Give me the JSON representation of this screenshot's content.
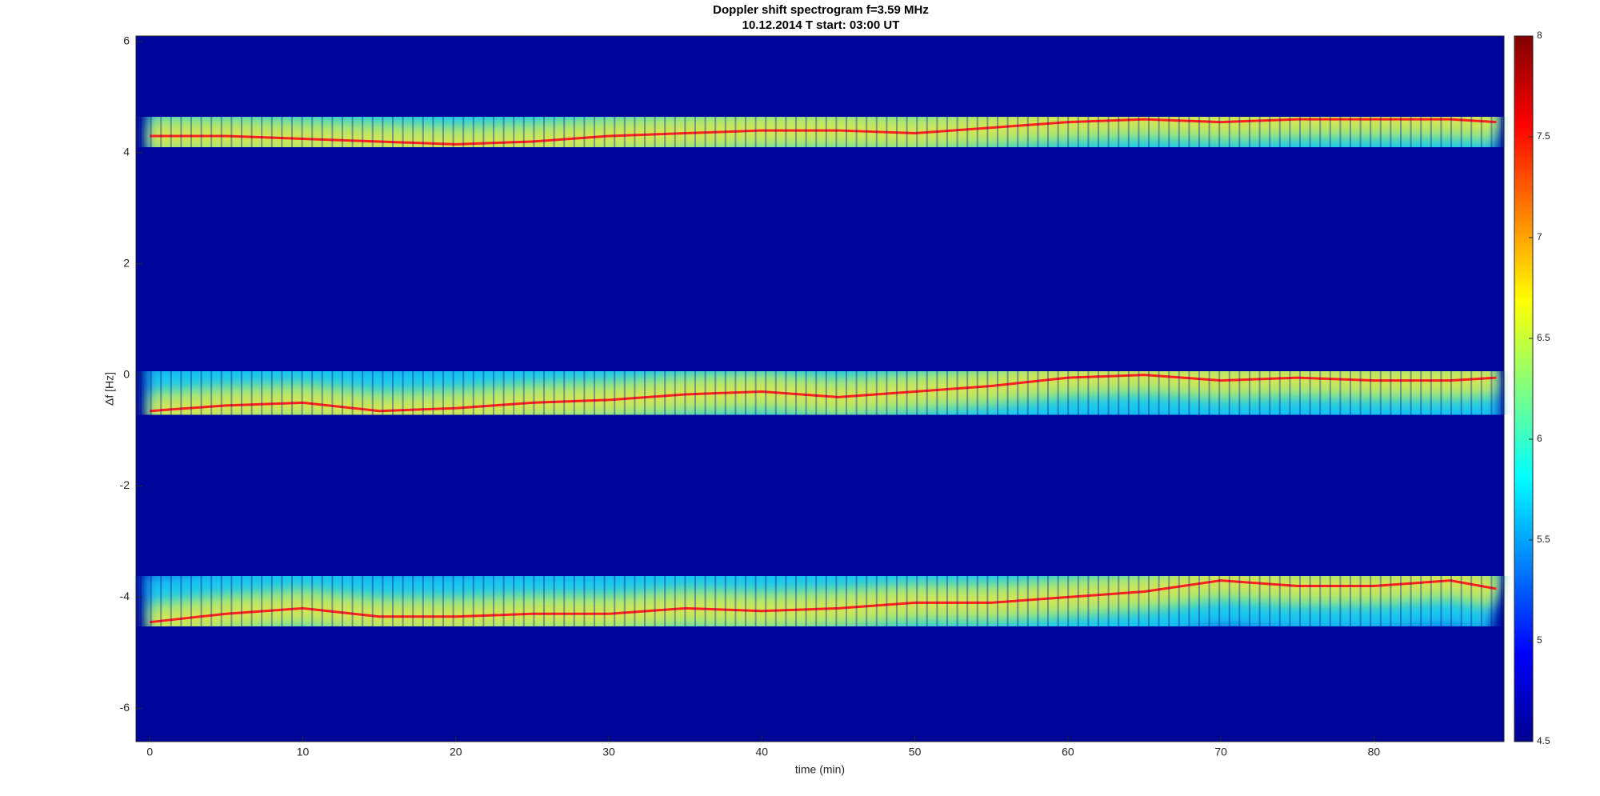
{
  "chart_data": {
    "type": "spectrogram",
    "title": "Doppler shift spectrogram f=3.59 MHz",
    "subtitle": "10.12.2014   T start: 03:00 UT",
    "x_label": "time (min)",
    "y_label": "Δf [Hz]",
    "x": [
      0,
      5,
      10,
      15,
      20,
      25,
      30,
      35,
      40,
      45,
      50,
      55,
      60,
      65,
      70,
      75,
      80,
      85,
      88
    ],
    "series": [
      {
        "color": "#ff2020",
        "values": [
          4.3,
          4.3,
          4.25,
          4.2,
          4.15,
          4.2,
          4.3,
          4.35,
          4.4,
          4.4,
          4.35,
          4.45,
          4.55,
          4.6,
          4.55,
          4.6,
          4.6,
          4.6,
          4.55
        ]
      },
      {
        "color": "#ff2020",
        "values": [
          -0.65,
          -0.55,
          -0.5,
          -0.65,
          -0.6,
          -0.5,
          -0.45,
          -0.35,
          -0.3,
          -0.4,
          -0.3,
          -0.2,
          -0.05,
          0.0,
          -0.1,
          -0.05,
          -0.1,
          -0.1,
          -0.05
        ]
      },
      {
        "color": "#ff2020",
        "values": [
          -4.45,
          -4.3,
          -4.2,
          -4.35,
          -4.35,
          -4.3,
          -4.3,
          -4.2,
          -4.25,
          -4.2,
          -4.1,
          -4.1,
          -4.0,
          -3.9,
          -3.7,
          -3.8,
          -3.8,
          -3.7,
          -3.85
        ]
      }
    ],
    "xlim": [
      -0.9,
      88.5
    ],
    "xticks": [
      0,
      10,
      20,
      30,
      40,
      50,
      60,
      70,
      80
    ],
    "ylim": [
      -6.6,
      6.1
    ],
    "yticks": [
      -6,
      -4,
      -2,
      0,
      2,
      4,
      6
    ],
    "clim": [
      4.5,
      8
    ],
    "cticks": [
      4.5,
      5,
      5.5,
      6,
      6.5,
      7,
      7.5,
      8
    ],
    "grid": false
  }
}
